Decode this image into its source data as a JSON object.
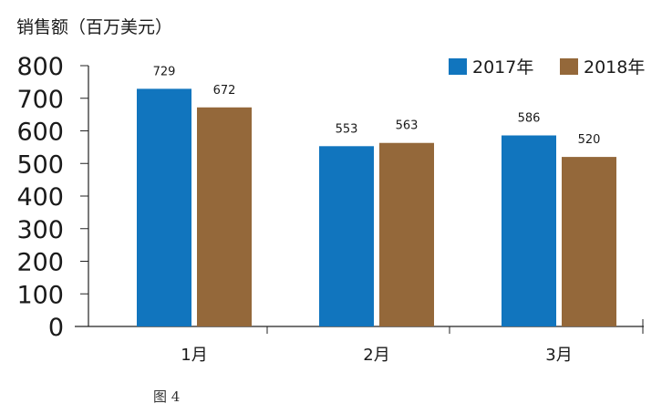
{
  "chart_data": {
    "type": "bar",
    "ylabel": "销售额（百万美元）",
    "categories": [
      "1月",
      "2月",
      "3月"
    ],
    "series": [
      {
        "name": "2017年",
        "color": "#1175be",
        "values": [
          729,
          553,
          586
        ]
      },
      {
        "name": "2018年",
        "color": "#94683a",
        "values": [
          672,
          563,
          520
        ]
      }
    ],
    "ylim": [
      0,
      800
    ],
    "yticks": [
      0,
      100,
      200,
      300,
      400,
      500,
      600,
      700,
      800
    ],
    "grid": false,
    "legend": "top-right",
    "caption": "图 4"
  }
}
